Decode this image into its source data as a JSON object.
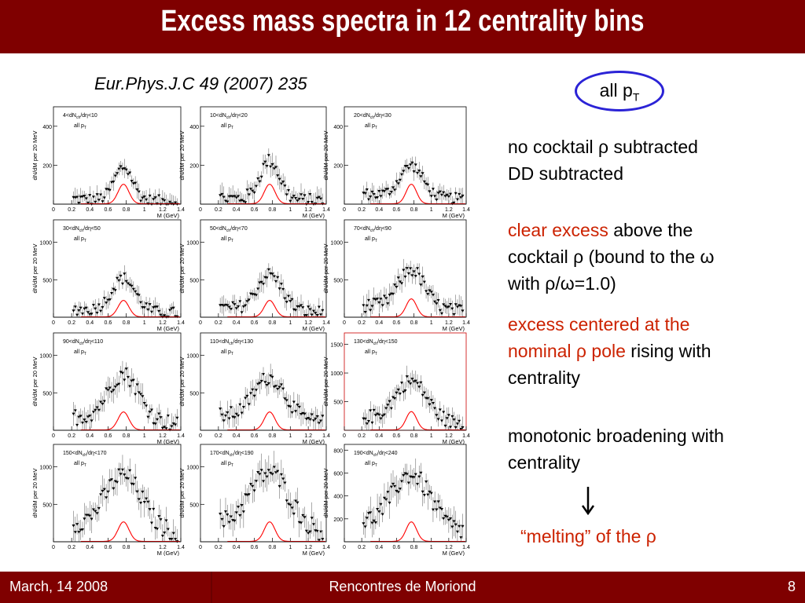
{
  "title": "Excess mass spectra in 12 centrality bins",
  "citation": "Eur.Phys.J.C 49 (2007) 235",
  "allpt": {
    "text": "all p",
    "sub": "T"
  },
  "right_text": {
    "block1_line1": "no cocktail ρ subtracted",
    "block1_line2": "DD subtracted",
    "block2_red": "clear excess",
    "block2_rest": " above the cocktail ρ (bound to the ω with ρ/ω=1.0)",
    "block3_red": "excess centered at the nominal ρ pole",
    "block3_rest": " rising with centrality",
    "block4": "monotonic broadening with centrality",
    "melting": "“melting” of the ρ"
  },
  "footer": {
    "date": "March, 14 2008",
    "conference": "Rencontres de Moriond",
    "page": "8"
  },
  "colors": {
    "title_bar": "#7f0000",
    "red_text": "#cc2200",
    "oval": "#2b23d6",
    "cocktail_curve": "#ff0000"
  },
  "chart_data": [
    {
      "type": "scatter",
      "bin": "4<dN_ch/dη<10",
      "label_main": "4<dN",
      "label_sub": "ch",
      "label_rest": "/dη<10",
      "allpt": "all p",
      "ylabel": "dN/dM per 20 MeV",
      "xlabel": "M (GeV)",
      "ylim": [
        0,
        500
      ],
      "yticks": [
        200,
        400
      ],
      "xticks": [
        "0",
        "0.2",
        "0.4",
        "0.6",
        "0.8",
        "1",
        "1.2",
        "1.4"
      ],
      "peak": 170,
      "width": 0.1,
      "base": 30,
      "rho_peak": 100
    },
    {
      "type": "scatter",
      "bin": "10<dN_ch/dη<20",
      "label_main": "10<dN",
      "label_sub": "ch",
      "label_rest": "/dη<20",
      "allpt": "all p",
      "ylabel": "dN/dM per 20 MeV",
      "xlabel": "M (GeV)",
      "ylim": [
        0,
        500
      ],
      "yticks": [
        200,
        400
      ],
      "xticks": [
        "0",
        "0.2",
        "0.4",
        "0.6",
        "0.8",
        "1",
        "1.2",
        "1.4"
      ],
      "peak": 200,
      "width": 0.11,
      "base": 35,
      "rho_peak": 100
    },
    {
      "type": "scatter",
      "bin": "20<dN_ch/dη<30",
      "label_main": "20<dN",
      "label_sub": "ch",
      "label_rest": "/dη<30",
      "allpt": "all p",
      "ylabel": "dN/dM per 20 MeV",
      "xlabel": "M (GeV)",
      "ylim": [
        0,
        500
      ],
      "yticks": [
        200,
        400
      ],
      "xticks": [
        "0",
        "0.2",
        "0.4",
        "0.6",
        "0.8",
        "1",
        "1.2",
        "1.4"
      ],
      "peak": 160,
      "width": 0.13,
      "base": 60,
      "rho_peak": 100
    },
    {
      "type": "scatter",
      "bin": "30<dN_ch/dη<50",
      "label_main": "30<dN",
      "label_sub": "ch",
      "label_rest": "/dη<50",
      "allpt": "all p",
      "ylabel": "dN/dM per 20 MeV",
      "xlabel": "M (GeV)",
      "ylim": [
        0,
        1300
      ],
      "yticks": [
        500,
        1000
      ],
      "xticks": [
        "0",
        "0.2",
        "0.4",
        "0.6",
        "0.8",
        "1",
        "1.2",
        "1.4"
      ],
      "peak": 440,
      "width": 0.13,
      "base": 120,
      "rho_peak": 220
    },
    {
      "type": "scatter",
      "bin": "50<dN_ch/dη<70",
      "label_main": "50<dN",
      "label_sub": "ch",
      "label_rest": "/dη<70",
      "allpt": "all p",
      "ylabel": "dN/dM per 20 MeV",
      "xlabel": "M (GeV)",
      "ylim": [
        0,
        1300
      ],
      "yticks": [
        500,
        1000
      ],
      "xticks": [
        "0",
        "0.2",
        "0.4",
        "0.6",
        "0.8",
        "1",
        "1.2",
        "1.4"
      ],
      "peak": 480,
      "width": 0.14,
      "base": 140,
      "rho_peak": 220
    },
    {
      "type": "scatter",
      "bin": "70<dN_ch/dη<90",
      "label_main": "70<dN",
      "label_sub": "ch",
      "label_rest": "/dη<90",
      "allpt": "all p",
      "ylabel": "dN/dM per 20 MeV",
      "xlabel": "M (GeV)",
      "ylim": [
        0,
        1300
      ],
      "yticks": [
        500,
        1000
      ],
      "xticks": [
        "0",
        "0.2",
        "0.4",
        "0.6",
        "0.8",
        "1",
        "1.2",
        "1.4"
      ],
      "peak": 520,
      "width": 0.15,
      "base": 180,
      "rho_peak": 240
    },
    {
      "type": "scatter",
      "bin": "90<dN_ch/dη<110",
      "label_main": "90<dN",
      "label_sub": "ch",
      "label_rest": "/dη<110",
      "allpt": "all p",
      "ylabel": "dN/dM per 20 MeV",
      "xlabel": "M (GeV)",
      "ylim": [
        0,
        1300
      ],
      "yticks": [
        500,
        1000
      ],
      "xticks": [
        "0",
        "0.2",
        "0.4",
        "0.6",
        "0.8",
        "1",
        "1.2",
        "1.4"
      ],
      "peak": 620,
      "width": 0.17,
      "base": 200,
      "rho_peak": 240
    },
    {
      "type": "scatter",
      "bin": "110<dN_ch/dη<130",
      "label_main": "110<dN",
      "label_sub": "ch",
      "label_rest": "/dη<130",
      "allpt": "all p",
      "ylabel": "dN/dM per 20 MeV",
      "xlabel": "M (GeV)",
      "ylim": [
        0,
        1300
      ],
      "yticks": [
        500,
        1000
      ],
      "xticks": [
        "0",
        "0.2",
        "0.4",
        "0.6",
        "0.8",
        "1",
        "1.2",
        "1.4"
      ],
      "peak": 560,
      "width": 0.18,
      "base": 220,
      "rho_peak": 240
    },
    {
      "type": "scatter",
      "bin": "130<dN_ch/dη<150",
      "label_main": "130<dN",
      "label_sub": "ch",
      "label_rest": "/dη<150",
      "allpt": "all p",
      "ylabel": "dN/dM per 20 MeV",
      "xlabel": "M (GeV)",
      "ylim": [
        0,
        1700
      ],
      "yticks": [
        500,
        1000,
        1500
      ],
      "xticks": [
        "0",
        "0.2",
        "0.4",
        "0.6",
        "0.8",
        "1",
        "1.2",
        "1.4"
      ],
      "peak": 700,
      "width": 0.18,
      "base": 250,
      "rho_peak": 320
    },
    {
      "type": "scatter",
      "bin": "150<dN_ch/dη<170",
      "label_main": "150<dN",
      "label_sub": "ch",
      "label_rest": "/dη<170",
      "allpt": "all p",
      "ylabel": "dN/dM per 20 MeV",
      "xlabel": "M (GeV)",
      "ylim": [
        0,
        1300
      ],
      "yticks": [
        500,
        1000
      ],
      "xticks": [
        "0",
        "0.2",
        "0.4",
        "0.6",
        "0.8",
        "1",
        "1.2",
        "1.4"
      ],
      "peak": 720,
      "width": 0.2,
      "base": 260,
      "rho_peak": 260
    },
    {
      "type": "scatter",
      "bin": "170<dN_ch/dη<190",
      "label_main": "170<dN",
      "label_sub": "ch",
      "label_rest": "/dη<190",
      "allpt": "all p",
      "ylabel": "dN/dM per 20 MeV",
      "xlabel": "M (GeV)",
      "ylim": [
        0,
        1300
      ],
      "yticks": [
        500,
        1000
      ],
      "xticks": [
        "0",
        "0.2",
        "0.4",
        "0.6",
        "0.8",
        "1",
        "1.2",
        "1.4"
      ],
      "peak": 760,
      "width": 0.22,
      "base": 260,
      "rho_peak": 260
    },
    {
      "type": "scatter",
      "bin": "190<dN_ch/dη<240",
      "label_main": "190<dN",
      "label_sub": "ch",
      "label_rest": "/dη<240",
      "allpt": "all p",
      "ylabel": "dN/dM per 20 MeV",
      "xlabel": "M (GeV)",
      "ylim": [
        0,
        850
      ],
      "yticks": [
        200,
        400,
        600,
        800
      ],
      "xticks": [
        "0",
        "0.2",
        "0.4",
        "0.6",
        "0.8",
        "1",
        "1.2",
        "1.4"
      ],
      "peak": 470,
      "width": 0.22,
      "base": 180,
      "rho_peak": 170
    }
  ]
}
